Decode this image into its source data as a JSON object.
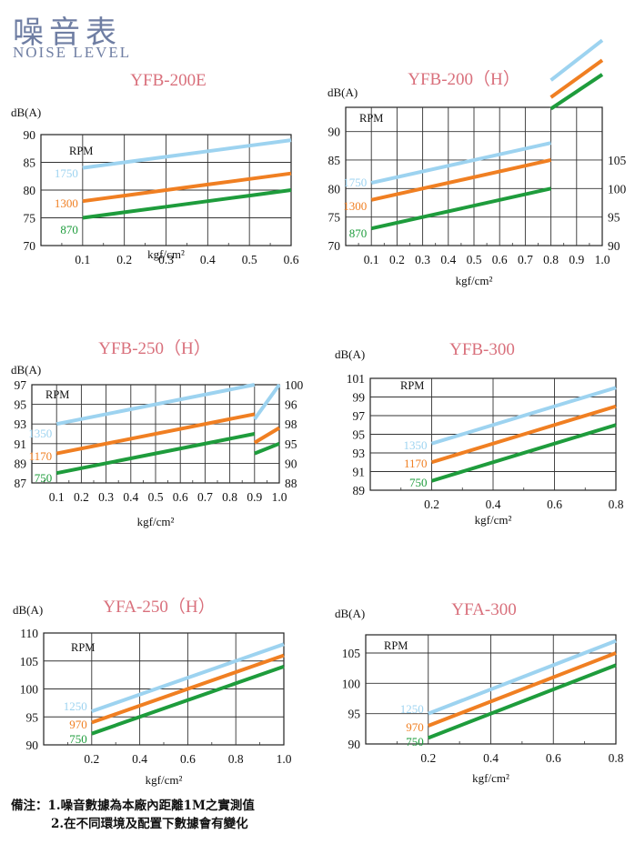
{
  "header": {
    "title_cn": "噪音表",
    "title_en": "NOISE LEVEL"
  },
  "colors": {
    "c1": "#9dd3f0",
    "c2": "#f07f22",
    "c3": "#1e9c3c",
    "title": "#d9707c"
  },
  "notes": {
    "prefix": "備注：",
    "line1": "1.噪音數據為本廠內距離1M之實測值",
    "line2": "2.在不同環境及配置下數據會有變化"
  },
  "chart_data": [
    {
      "type": "line",
      "title": "YFB-200E",
      "ylabel": "dB(A)",
      "xlabel": "kgf/cm²",
      "legend_title": "RPM",
      "ylim": [
        70,
        90
      ],
      "yticks": [
        70,
        75,
        80,
        85,
        90
      ],
      "xlim": [
        0,
        0.6
      ],
      "xticks": [
        0.1,
        0.2,
        0.3,
        0.4,
        0.5,
        0.6
      ],
      "series": [
        {
          "name": "1750",
          "x": [
            0.1,
            0.2,
            0.3,
            0.4,
            0.5,
            0.6
          ],
          "y": [
            84,
            85,
            86,
            87,
            88,
            89
          ]
        },
        {
          "name": "1300",
          "x": [
            0.1,
            0.2,
            0.3,
            0.4,
            0.5,
            0.6
          ],
          "y": [
            78,
            79,
            80,
            81,
            82,
            83
          ]
        },
        {
          "name": "870",
          "x": [
            0.1,
            0.2,
            0.3,
            0.4,
            0.5,
            0.6
          ],
          "y": [
            75,
            76,
            77,
            78,
            79,
            80
          ]
        }
      ]
    },
    {
      "type": "line",
      "title": "YFB-200（H）",
      "ylabel": "dB(A)",
      "xlabel": "kgf/cm²",
      "legend_title": "RPM",
      "ylim": [
        70,
        90
      ],
      "yticks": [
        70,
        75,
        80,
        85,
        90
      ],
      "ytop_extra": 1,
      "xlim": [
        0,
        1.0
      ],
      "xticks": [
        0.1,
        0.2,
        0.3,
        0.4,
        0.5,
        0.6,
        0.7,
        0.8,
        0.9,
        1.0
      ],
      "y2ticks": [
        "90",
        "95",
        "100",
        "105"
      ],
      "series": [
        {
          "name": "1750",
          "x": [
            0.1,
            0.8
          ],
          "y": [
            81,
            88
          ],
          "x2": [
            0.8,
            1.0
          ],
          "y2": [
            99,
            106
          ]
        },
        {
          "name": "1300",
          "x": [
            0.1,
            0.8
          ],
          "y": [
            78,
            85
          ],
          "x2": [
            0.8,
            1.0
          ],
          "y2": [
            96,
            102.5
          ]
        },
        {
          "name": "870",
          "x": [
            0.1,
            0.8
          ],
          "y": [
            73,
            80
          ],
          "x2": [
            0.8,
            1.0
          ],
          "y2": [
            94,
            100
          ]
        }
      ]
    },
    {
      "type": "line",
      "title": "YFB-250（H）",
      "ylabel": "dB(A)",
      "xlabel": "kgf/cm²",
      "legend_title": "RPM",
      "ylim": [
        87,
        97
      ],
      "yticks": [
        87,
        89,
        91,
        93,
        95,
        97
      ],
      "xlim": [
        0,
        1.0
      ],
      "xticks": [
        0.1,
        0.2,
        0.3,
        0.4,
        0.5,
        0.6,
        0.7,
        0.8,
        0.9,
        1.0
      ],
      "y2ticks": [
        "88",
        "90",
        "95",
        "98",
        "96",
        "100"
      ],
      "series": [
        {
          "name": "1350",
          "x": [
            0.1,
            0.9
          ],
          "y": [
            93,
            97
          ],
          "x2": [
            0.9,
            1.0
          ],
          "y2": [
            93.5,
            97
          ]
        },
        {
          "name": "1170",
          "x": [
            0.1,
            0.9
          ],
          "y": [
            90,
            94
          ],
          "x2": [
            0.9,
            1.0
          ],
          "y2": [
            91.1,
            92.6
          ]
        },
        {
          "name": "750",
          "x": [
            0.1,
            0.9
          ],
          "y": [
            88,
            92
          ],
          "x2": [
            0.9,
            1.0
          ],
          "y2": [
            90,
            91
          ]
        }
      ]
    },
    {
      "type": "line",
      "title": "YFB-300",
      "ylabel": "dB(A)",
      "xlabel": "kgf/cm²",
      "legend_title": "RPM",
      "ylim": [
        89,
        101
      ],
      "yticks": [
        89,
        91,
        93,
        95,
        97,
        99,
        101
      ],
      "xlim": [
        0,
        0.8
      ],
      "xticks": [
        0.2,
        0.4,
        0.6,
        0.8
      ],
      "series": [
        {
          "name": "1350",
          "x": [
            0.2,
            0.8
          ],
          "y": [
            94,
            100
          ]
        },
        {
          "name": "1170",
          "x": [
            0.2,
            0.8
          ],
          "y": [
            92,
            98
          ]
        },
        {
          "name": "750",
          "x": [
            0.2,
            0.8
          ],
          "y": [
            90,
            96
          ]
        }
      ]
    },
    {
      "type": "line",
      "title": "YFA-250（H）",
      "ylabel": "dB(A)",
      "xlabel": "kgf/cm²",
      "legend_title": "RPM",
      "ylim": [
        90,
        110
      ],
      "yticks": [
        90,
        95,
        100,
        105,
        110
      ],
      "xlim": [
        0,
        1.0
      ],
      "xticks": [
        0.2,
        0.4,
        0.6,
        0.8,
        1.0
      ],
      "series": [
        {
          "name": "1250",
          "x": [
            0.2,
            1.0
          ],
          "y": [
            96,
            108
          ]
        },
        {
          "name": "970",
          "x": [
            0.2,
            1.0
          ],
          "y": [
            94,
            106
          ]
        },
        {
          "name": "750",
          "x": [
            0.2,
            1.0
          ],
          "y": [
            92,
            104
          ]
        }
      ]
    },
    {
      "type": "line",
      "title": "YFA-300",
      "ylabel": "dB(A)",
      "xlabel": "kgf/cm²",
      "legend_title": "RPM",
      "ylim": [
        90,
        108
      ],
      "yticks": [
        90,
        95,
        100,
        105
      ],
      "xlim": [
        0,
        0.8
      ],
      "xticks": [
        0.2,
        0.4,
        0.6,
        0.8
      ],
      "series": [
        {
          "name": "1250",
          "x": [
            0.2,
            0.8
          ],
          "y": [
            95,
            107
          ]
        },
        {
          "name": "970",
          "x": [
            0.2,
            0.8
          ],
          "y": [
            93,
            105
          ]
        },
        {
          "name": "750",
          "x": [
            0.2,
            0.8
          ],
          "y": [
            91,
            103
          ]
        }
      ]
    }
  ]
}
